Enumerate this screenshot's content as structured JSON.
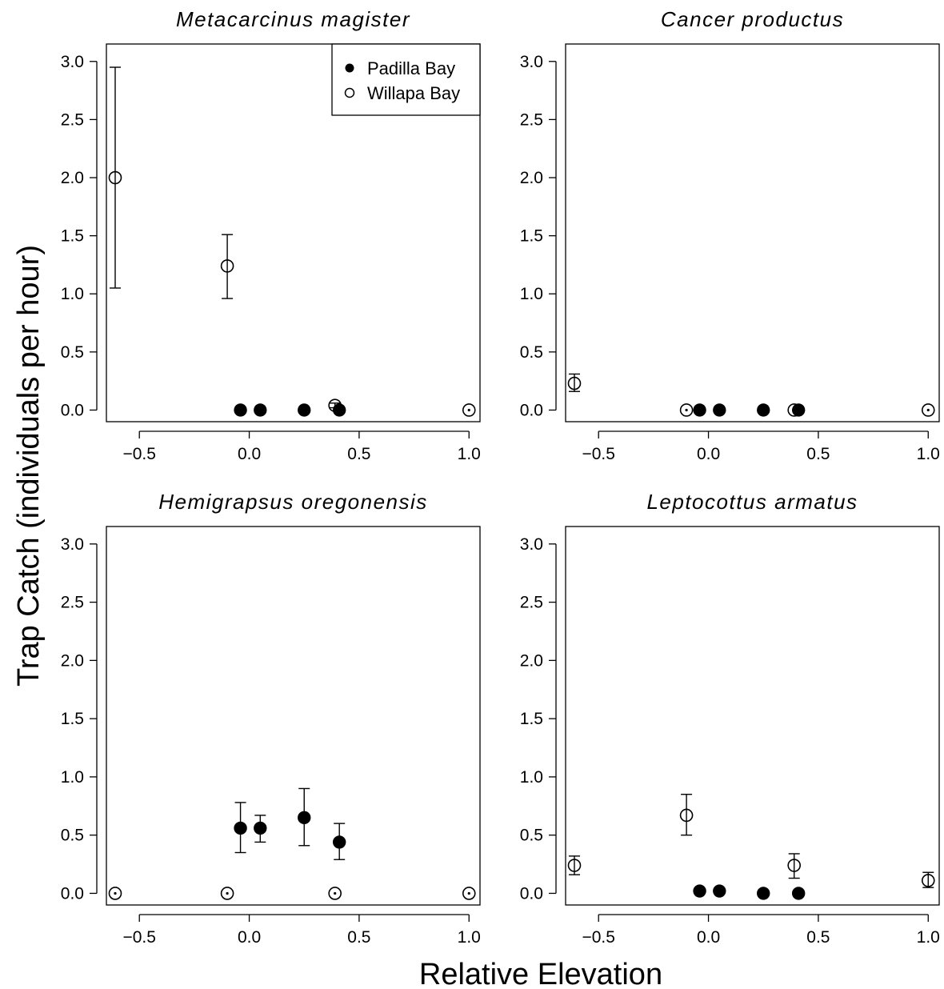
{
  "figure": {
    "xlabel": "Relative Elevation",
    "ylabel": "Trap Catch (individuals per hour)"
  },
  "legend": {
    "entries": [
      {
        "label": "Padilla Bay",
        "marker": "filled"
      },
      {
        "label": "Willapa Bay",
        "marker": "open"
      }
    ],
    "placement": "top-right of first panel"
  },
  "chart_data": [
    {
      "type": "scatter",
      "title": "Metacarcinus magister",
      "xlim": [
        -0.65,
        1.05
      ],
      "ylim": [
        -0.1,
        3.15
      ],
      "xticks": [
        "-0.5",
        "0.0",
        "0.5",
        "1.0"
      ],
      "yticks": [
        "0.0",
        "0.5",
        "1.0",
        "1.5",
        "2.0",
        "2.5",
        "3.0"
      ],
      "series": [
        {
          "name": "Padilla Bay",
          "marker": "filled",
          "points": [
            {
              "x": -0.04,
              "y": 0.0
            },
            {
              "x": 0.05,
              "y": 0.0
            },
            {
              "x": 0.25,
              "y": 0.0
            },
            {
              "x": 0.41,
              "y": 0.0
            }
          ]
        },
        {
          "name": "Willapa Bay",
          "marker": "open",
          "points": [
            {
              "x": -0.61,
              "y": 2.0,
              "lo": 1.05,
              "hi": 2.95
            },
            {
              "x": -0.1,
              "y": 1.24,
              "lo": 0.96,
              "hi": 1.51
            },
            {
              "x": 0.39,
              "y": 0.04,
              "lo": 0.02,
              "hi": 0.06
            },
            {
              "x": 1.0,
              "y": 0.0
            }
          ]
        }
      ]
    },
    {
      "type": "scatter",
      "title": "Cancer productus",
      "xlim": [
        -0.65,
        1.05
      ],
      "ylim": [
        -0.1,
        3.15
      ],
      "xticks": [
        "-0.5",
        "0.0",
        "0.5",
        "1.0"
      ],
      "yticks": [
        "0.0",
        "0.5",
        "1.0",
        "1.5",
        "2.0",
        "2.5",
        "3.0"
      ],
      "series": [
        {
          "name": "Padilla Bay",
          "marker": "filled",
          "points": [
            {
              "x": -0.04,
              "y": 0.0
            },
            {
              "x": 0.05,
              "y": 0.0
            },
            {
              "x": 0.25,
              "y": 0.0
            },
            {
              "x": 0.41,
              "y": 0.0
            }
          ]
        },
        {
          "name": "Willapa Bay",
          "marker": "open",
          "points": [
            {
              "x": -0.61,
              "y": 0.23,
              "lo": 0.16,
              "hi": 0.31
            },
            {
              "x": -0.1,
              "y": 0.0
            },
            {
              "x": 0.39,
              "y": 0.0
            },
            {
              "x": 1.0,
              "y": 0.0
            }
          ]
        }
      ]
    },
    {
      "type": "scatter",
      "title": "Hemigrapsus oregonensis",
      "xlim": [
        -0.65,
        1.05
      ],
      "ylim": [
        -0.1,
        3.15
      ],
      "xticks": [
        "-0.5",
        "0.0",
        "0.5",
        "1.0"
      ],
      "yticks": [
        "0.0",
        "0.5",
        "1.0",
        "1.5",
        "2.0",
        "2.5",
        "3.0"
      ],
      "series": [
        {
          "name": "Padilla Bay",
          "marker": "filled",
          "points": [
            {
              "x": -0.04,
              "y": 0.56,
              "lo": 0.35,
              "hi": 0.78
            },
            {
              "x": 0.05,
              "y": 0.56,
              "lo": 0.44,
              "hi": 0.67
            },
            {
              "x": 0.25,
              "y": 0.65,
              "lo": 0.41,
              "hi": 0.9
            },
            {
              "x": 0.41,
              "y": 0.44,
              "lo": 0.29,
              "hi": 0.6
            }
          ]
        },
        {
          "name": "Willapa Bay",
          "marker": "open",
          "points": [
            {
              "x": -0.61,
              "y": 0.0
            },
            {
              "x": -0.1,
              "y": 0.0
            },
            {
              "x": 0.39,
              "y": 0.0
            },
            {
              "x": 1.0,
              "y": 0.0
            }
          ]
        }
      ]
    },
    {
      "type": "scatter",
      "title": "Leptocottus armatus",
      "xlim": [
        -0.65,
        1.05
      ],
      "ylim": [
        -0.1,
        3.15
      ],
      "xticks": [
        "-0.5",
        "0.0",
        "0.5",
        "1.0"
      ],
      "yticks": [
        "0.0",
        "0.5",
        "1.0",
        "1.5",
        "2.0",
        "2.5",
        "3.0"
      ],
      "series": [
        {
          "name": "Padilla Bay",
          "marker": "filled",
          "points": [
            {
              "x": -0.04,
              "y": 0.02
            },
            {
              "x": 0.05,
              "y": 0.02
            },
            {
              "x": 0.25,
              "y": 0.0
            },
            {
              "x": 0.41,
              "y": 0.0
            }
          ]
        },
        {
          "name": "Willapa Bay",
          "marker": "open",
          "points": [
            {
              "x": -0.61,
              "y": 0.24,
              "lo": 0.16,
              "hi": 0.32
            },
            {
              "x": -0.1,
              "y": 0.67,
              "lo": 0.5,
              "hi": 0.85
            },
            {
              "x": 0.39,
              "y": 0.24,
              "lo": 0.13,
              "hi": 0.34
            },
            {
              "x": 1.0,
              "y": 0.11,
              "lo": 0.05,
              "hi": 0.18
            }
          ]
        }
      ]
    }
  ]
}
